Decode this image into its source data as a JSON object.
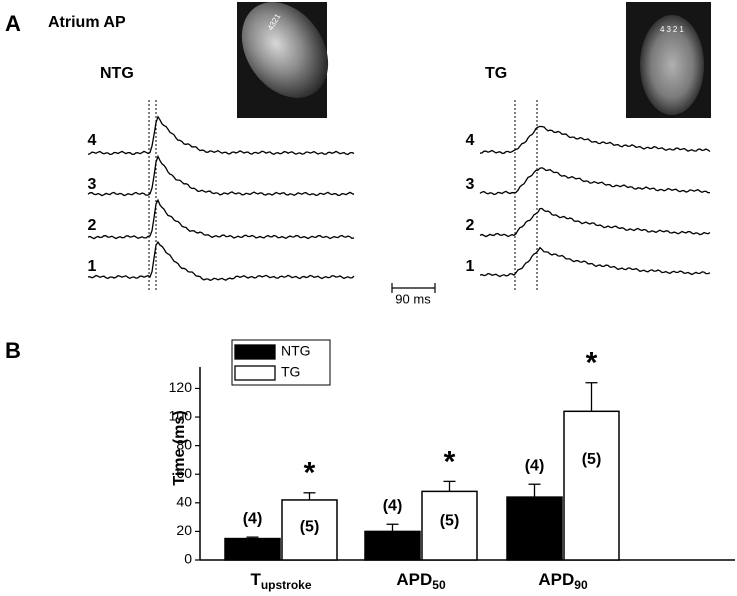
{
  "panel_a": {
    "label": "A",
    "title": "Atrium AP",
    "groups": [
      {
        "name": "NTG",
        "trace_labels": [
          "4",
          "3",
          "2",
          "1"
        ],
        "image_text": "4321"
      },
      {
        "name": "TG",
        "trace_labels": [
          "4",
          "3",
          "2",
          "1"
        ],
        "image_text": "4321"
      }
    ],
    "scale_bar": "90 ms"
  },
  "chart_data": {
    "type": "bar",
    "panel_label": "B",
    "ylabel": "Time (ms)",
    "categories": [
      "T",
      "APD",
      "APD"
    ],
    "category_subscripts": [
      "upstroke",
      "50",
      "90"
    ],
    "series": [
      {
        "name": "NTG",
        "color": "#000000",
        "values": [
          15,
          20,
          44
        ],
        "errors": [
          1,
          5,
          9
        ],
        "n_labels": [
          "(4)",
          "(4)",
          "(4)"
        ]
      },
      {
        "name": "TG",
        "color": "#ffffff",
        "values": [
          42,
          48,
          104
        ],
        "errors": [
          5,
          7,
          20
        ],
        "n_labels": [
          "(5)",
          "(5)",
          "(5)"
        ],
        "significance": [
          "*",
          "*",
          "*"
        ]
      }
    ],
    "ylim": [
      0,
      135
    ],
    "yticks": [
      0,
      20,
      40,
      60,
      80,
      100,
      120
    ]
  }
}
